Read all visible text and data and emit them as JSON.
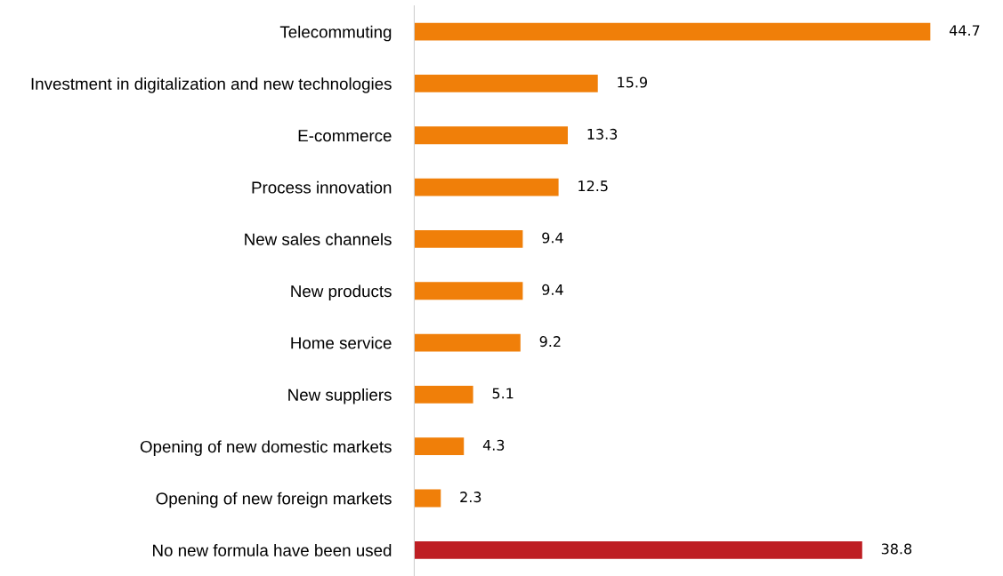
{
  "chart_data": {
    "type": "bar",
    "orientation": "horizontal",
    "categories": [
      "Telecommuting",
      "Investment in digitalization and new technologies",
      "E-commerce",
      "Process innovation",
      "New sales channels",
      "New products",
      "Home service",
      "New suppliers",
      "Opening of new domestic markets",
      "Opening of new foreign markets",
      "No new formula have been used"
    ],
    "values": [
      44.7,
      15.9,
      13.3,
      12.5,
      9.4,
      9.4,
      9.2,
      5.1,
      4.3,
      2.3,
      38.8
    ],
    "colors": [
      "#f07f09",
      "#f07f09",
      "#f07f09",
      "#f07f09",
      "#f07f09",
      "#f07f09",
      "#f07f09",
      "#f07f09",
      "#f07f09",
      "#f07f09",
      "#be1e23"
    ],
    "data_labels": true,
    "grid": false,
    "legend": false
  }
}
